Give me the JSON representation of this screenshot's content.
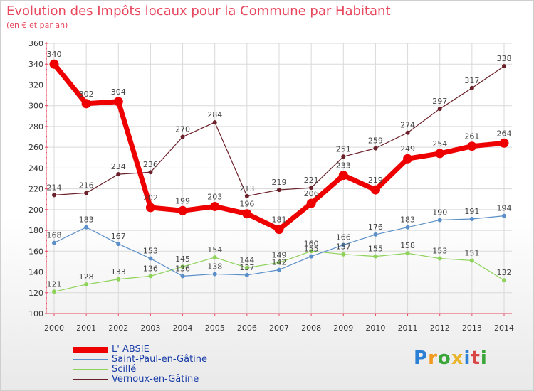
{
  "title": "Evolution des Impôts locaux pour la Commune par Habitant",
  "subtitle": "(en € et par an)",
  "brand": {
    "letters": [
      "P",
      "r",
      "o",
      "x",
      "i",
      "t",
      "i"
    ],
    "colors": [
      "#2b7fd4",
      "#f29a1f",
      "#3aa63a",
      "#e8b52a",
      "#2b7fd4",
      "#d94646",
      "#3aa63a"
    ]
  },
  "chart_data": {
    "type": "line",
    "title": "Evolution des Impôts locaux pour la Commune par Habitant",
    "subtitle": "(en € et par an)",
    "xlabel": "",
    "ylabel": "",
    "ylim": [
      100,
      360
    ],
    "grid": true,
    "legend_position": "bottom-left",
    "x": [
      "2000",
      "2001",
      "2002",
      "2003",
      "2004",
      "2005",
      "2006",
      "2007",
      "2008",
      "2009",
      "2010",
      "2011",
      "2012",
      "2013",
      "2014"
    ],
    "yticks": [
      "100",
      "120",
      "140",
      "160",
      "180",
      "200",
      "220",
      "240",
      "260",
      "280",
      "300",
      "320",
      "340",
      "360"
    ],
    "series": [
      {
        "name": "L' ABSIE",
        "color": "#ee0000",
        "values": [
          340,
          302,
          304,
          202,
          199,
          203,
          196,
          181,
          206,
          233,
          219,
          249,
          254,
          261,
          264
        ]
      },
      {
        "name": "Saint-Paul-en-Gâtine",
        "color": "#5b8fc9",
        "values": [
          168,
          183,
          167,
          153,
          136,
          138,
          137,
          142,
          155,
          166,
          176,
          183,
          190,
          191,
          194
        ]
      },
      {
        "name": "Scillé",
        "color": "#8ed25a",
        "values": [
          121,
          128,
          133,
          136,
          145,
          154,
          144,
          149,
          160,
          157,
          155,
          158,
          153,
          151,
          132
        ]
      },
      {
        "name": "Vernoux-en-Gâtine",
        "color": "#6b1f28",
        "values": [
          214,
          216,
          234,
          236,
          270,
          284,
          213,
          219,
          221,
          251,
          259,
          274,
          297,
          317,
          338
        ]
      }
    ],
    "labels": [
      [
        "340",
        "302",
        "304",
        "202",
        "199",
        "203",
        "196",
        "181",
        "206",
        "233",
        "219",
        "249",
        "254",
        "261",
        "264"
      ],
      [
        "168",
        "183",
        "167",
        "153",
        "136",
        "138",
        "137",
        "142",
        "155",
        "166",
        "176",
        "183",
        "190",
        "191",
        "194"
      ],
      [
        "121",
        "128",
        "133",
        "136",
        "145",
        "154",
        "144",
        "149",
        "160",
        "157",
        "155",
        "158",
        "153",
        "151",
        "132"
      ],
      [
        "214",
        "216",
        "234",
        "236",
        "270",
        "284",
        "213",
        "219",
        "221",
        "251",
        "259",
        "274",
        "297",
        "317",
        "338"
      ]
    ]
  }
}
